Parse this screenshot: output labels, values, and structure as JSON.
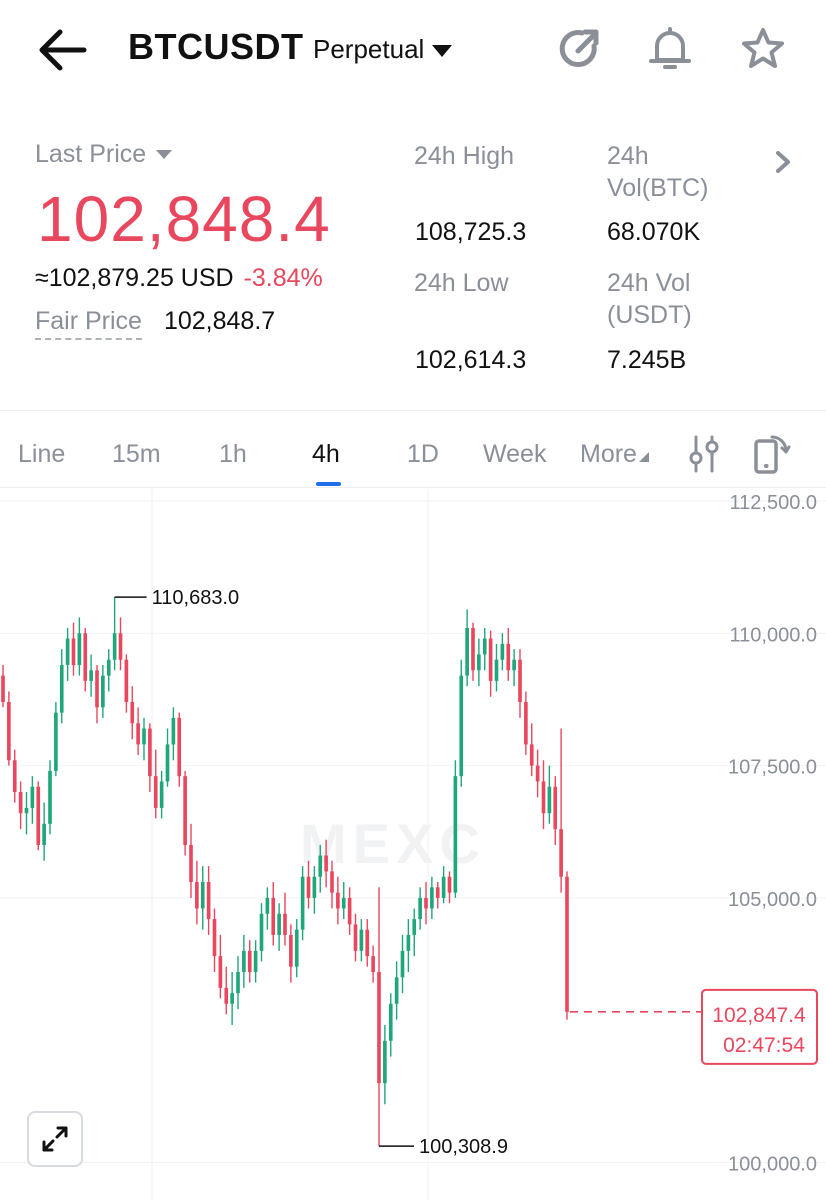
{
  "header": {
    "title": "BTCUSDT",
    "subtitle": "Perpetual"
  },
  "stats": {
    "last_price_label": "Last Price",
    "last_price": "102,848.4",
    "usd_price": "≈102,879.25 USD",
    "change_pct": "-3.84%",
    "fair_price_label": "Fair Price",
    "fair_price": "102,848.7",
    "high_label": "24h High",
    "high_value": "108,725.3",
    "low_label": "24h Low",
    "low_value": "102,614.3",
    "vol_btc_label_1": "24h",
    "vol_btc_label_2": "Vol(BTC)",
    "vol_btc_value": "68.070K",
    "vol_usdt_label_1": "24h Vol",
    "vol_usdt_label_2": "(USDT)",
    "vol_usdt_value": "7.245B"
  },
  "tabs": [
    {
      "label": "Line"
    },
    {
      "label": "15m"
    },
    {
      "label": "1h"
    },
    {
      "label": "4h"
    },
    {
      "label": "1D"
    },
    {
      "label": "Week"
    },
    {
      "label": "More"
    }
  ],
  "active_tab": "4h",
  "colors": {
    "up": "#1fa67a",
    "down": "#e8475d",
    "accent": "#1f6feb"
  },
  "chart": {
    "watermark": "MEXC",
    "current_price_label": "102,847.4",
    "countdown": "02:47:54",
    "high_marker": "110,683.0",
    "low_marker": "100,308.9",
    "axis_labels": [
      "112,500.0",
      "110,000.0",
      "107,500.0",
      "105,000.0",
      "100,000.0"
    ]
  },
  "chart_data": {
    "type": "candlestick",
    "interval": "4h",
    "y_ticks": [
      100000,
      105000,
      107500,
      110000,
      112500
    ],
    "ylim": [
      99500,
      112650
    ],
    "current_price": 102847.4,
    "high_marker": 110683.0,
    "low_marker": 100308.9,
    "candles": [
      [
        109200,
        109400,
        108600,
        108700
      ],
      [
        108700,
        108900,
        107500,
        107600
      ],
      [
        107600,
        107800,
        106800,
        107000
      ],
      [
        107000,
        107200,
        106300,
        106600
      ],
      [
        106600,
        107000,
        106200,
        106700
      ],
      [
        106700,
        107300,
        106400,
        107100
      ],
      [
        107100,
        107200,
        105900,
        106000
      ],
      [
        106000,
        106800,
        105700,
        106400
      ],
      [
        106400,
        107600,
        106200,
        107400
      ],
      [
        107400,
        108700,
        107300,
        108500
      ],
      [
        108500,
        109700,
        108300,
        109400
      ],
      [
        109400,
        110100,
        109100,
        109900
      ],
      [
        109900,
        110200,
        109200,
        109400
      ],
      [
        109400,
        110300,
        109200,
        110000
      ],
      [
        110000,
        110100,
        108900,
        109100
      ],
      [
        109100,
        109600,
        108800,
        109300
      ],
      [
        109300,
        109400,
        108300,
        108600
      ],
      [
        108600,
        109400,
        108400,
        109200
      ],
      [
        109200,
        109700,
        108900,
        109500
      ],
      [
        109500,
        110683,
        109300,
        110000
      ],
      [
        110000,
        110300,
        109300,
        109500
      ],
      [
        109500,
        109600,
        108500,
        108700
      ],
      [
        108700,
        109000,
        108000,
        108300
      ],
      [
        108300,
        108600,
        107700,
        107900
      ],
      [
        107900,
        108400,
        107600,
        108200
      ],
      [
        108200,
        108300,
        107000,
        107300
      ],
      [
        107300,
        107800,
        106500,
        106700
      ],
      [
        106700,
        107400,
        106500,
        107200
      ],
      [
        107200,
        108200,
        107100,
        107900
      ],
      [
        107900,
        108600,
        107600,
        108400
      ],
      [
        108400,
        108500,
        107100,
        107300
      ],
      [
        107300,
        107400,
        105800,
        106000
      ],
      [
        106000,
        106400,
        105000,
        105300
      ],
      [
        105300,
        105700,
        104500,
        104800
      ],
      [
        104800,
        105600,
        104400,
        105300
      ],
      [
        105300,
        105600,
        104300,
        104600
      ],
      [
        104600,
        104800,
        103600,
        103900
      ],
      [
        103900,
        104300,
        103100,
        103300
      ],
      [
        103300,
        103700,
        102800,
        103000
      ],
      [
        103000,
        103600,
        102600,
        103200
      ],
      [
        103200,
        103900,
        102900,
        103600
      ],
      [
        103600,
        104300,
        103300,
        104000
      ],
      [
        104000,
        104200,
        103400,
        103600
      ],
      [
        103600,
        104200,
        103400,
        104000
      ],
      [
        104000,
        104900,
        103800,
        104700
      ],
      [
        104700,
        105200,
        104400,
        105000
      ],
      [
        105000,
        105300,
        104100,
        104300
      ],
      [
        104300,
        104900,
        104000,
        104700
      ],
      [
        104700,
        105100,
        104100,
        104300
      ],
      [
        104300,
        104500,
        103400,
        103700
      ],
      [
        103700,
        104600,
        103500,
        104400
      ],
      [
        104400,
        105600,
        104200,
        105400
      ],
      [
        105400,
        105700,
        104800,
        105000
      ],
      [
        105000,
        105600,
        104700,
        105400
      ],
      [
        105400,
        106000,
        105100,
        105800
      ],
      [
        105800,
        106100,
        105200,
        105500
      ],
      [
        105500,
        105700,
        104800,
        105100
      ],
      [
        105100,
        105400,
        104500,
        104800
      ],
      [
        104800,
        105300,
        104600,
        105000
      ],
      [
        105000,
        105200,
        104300,
        104500
      ],
      [
        104500,
        104700,
        103800,
        104000
      ],
      [
        104000,
        104600,
        103800,
        104400
      ],
      [
        104400,
        104600,
        103700,
        103900
      ],
      [
        103900,
        104100,
        103400,
        103600
      ],
      [
        103600,
        105200,
        100308.9,
        101500
      ],
      [
        101500,
        102600,
        101100,
        102300
      ],
      [
        102300,
        103200,
        102000,
        103000
      ],
      [
        103000,
        103800,
        102700,
        103500
      ],
      [
        103500,
        104300,
        103200,
        104000
      ],
      [
        104000,
        104600,
        103600,
        104300
      ],
      [
        104300,
        104800,
        103900,
        104600
      ],
      [
        104600,
        105200,
        104400,
        105000
      ],
      [
        105000,
        105300,
        104500,
        104800
      ],
      [
        104800,
        105400,
        104600,
        105200
      ],
      [
        105200,
        105300,
        104800,
        105000
      ],
      [
        105000,
        105600,
        104900,
        105400
      ],
      [
        105400,
        105500,
        104900,
        105100
      ],
      [
        105100,
        107600,
        105000,
        107300
      ],
      [
        107300,
        109500,
        107100,
        109200
      ],
      [
        109200,
        110450,
        109000,
        110100
      ],
      [
        110100,
        110200,
        109100,
        109300
      ],
      [
        109300,
        109900,
        109000,
        109600
      ],
      [
        109600,
        110100,
        109300,
        109900
      ],
      [
        109900,
        110050,
        108800,
        109100
      ],
      [
        109100,
        109800,
        108900,
        109500
      ],
      [
        109500,
        110000,
        109300,
        109800
      ],
      [
        109800,
        110100,
        109100,
        109300
      ],
      [
        109300,
        109700,
        109000,
        109500
      ],
      [
        109500,
        109700,
        108400,
        108700
      ],
      [
        108700,
        108900,
        107700,
        107900
      ],
      [
        107900,
        108300,
        107300,
        107500
      ],
      [
        107500,
        107800,
        106900,
        107200
      ],
      [
        107200,
        107600,
        106300,
        106600
      ],
      [
        106600,
        107500,
        106400,
        107100
      ],
      [
        107100,
        107300,
        106000,
        106300
      ],
      [
        106300,
        108200,
        105100,
        105400
      ],
      [
        105400,
        105500,
        102700,
        102847.4
      ]
    ]
  }
}
